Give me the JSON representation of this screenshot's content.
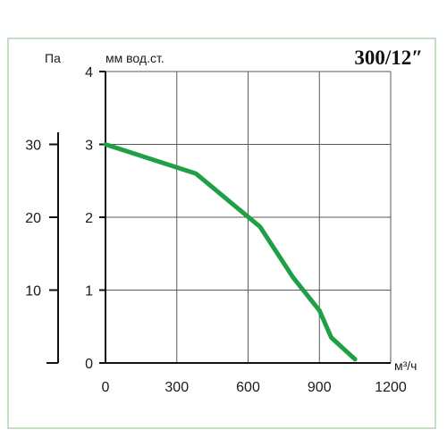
{
  "chart_data": {
    "type": "line",
    "title": "300/12″",
    "xlabel": "м³/ч",
    "ylabel": "мм вод.ст.",
    "secondary_ylabel": "Па",
    "xlim": [
      0,
      1200
    ],
    "ylim": [
      0,
      4
    ],
    "x_ticks": [
      "0",
      "300",
      "600",
      "900",
      "1200"
    ],
    "y_ticks": [
      "0",
      "1",
      "2",
      "3",
      "4"
    ],
    "secondary_y_ticks": [
      "10",
      "20",
      "30"
    ],
    "secondary_y_tick_values": [
      1.0,
      2.0,
      3.0
    ],
    "grid": true,
    "series": [
      {
        "color": "#1fa045",
        "x": [
          0,
          380,
          650,
          790,
          900,
          950,
          1050
        ],
        "y": [
          3.0,
          2.6,
          1.87,
          1.17,
          0.72,
          0.35,
          0.05
        ]
      }
    ]
  }
}
